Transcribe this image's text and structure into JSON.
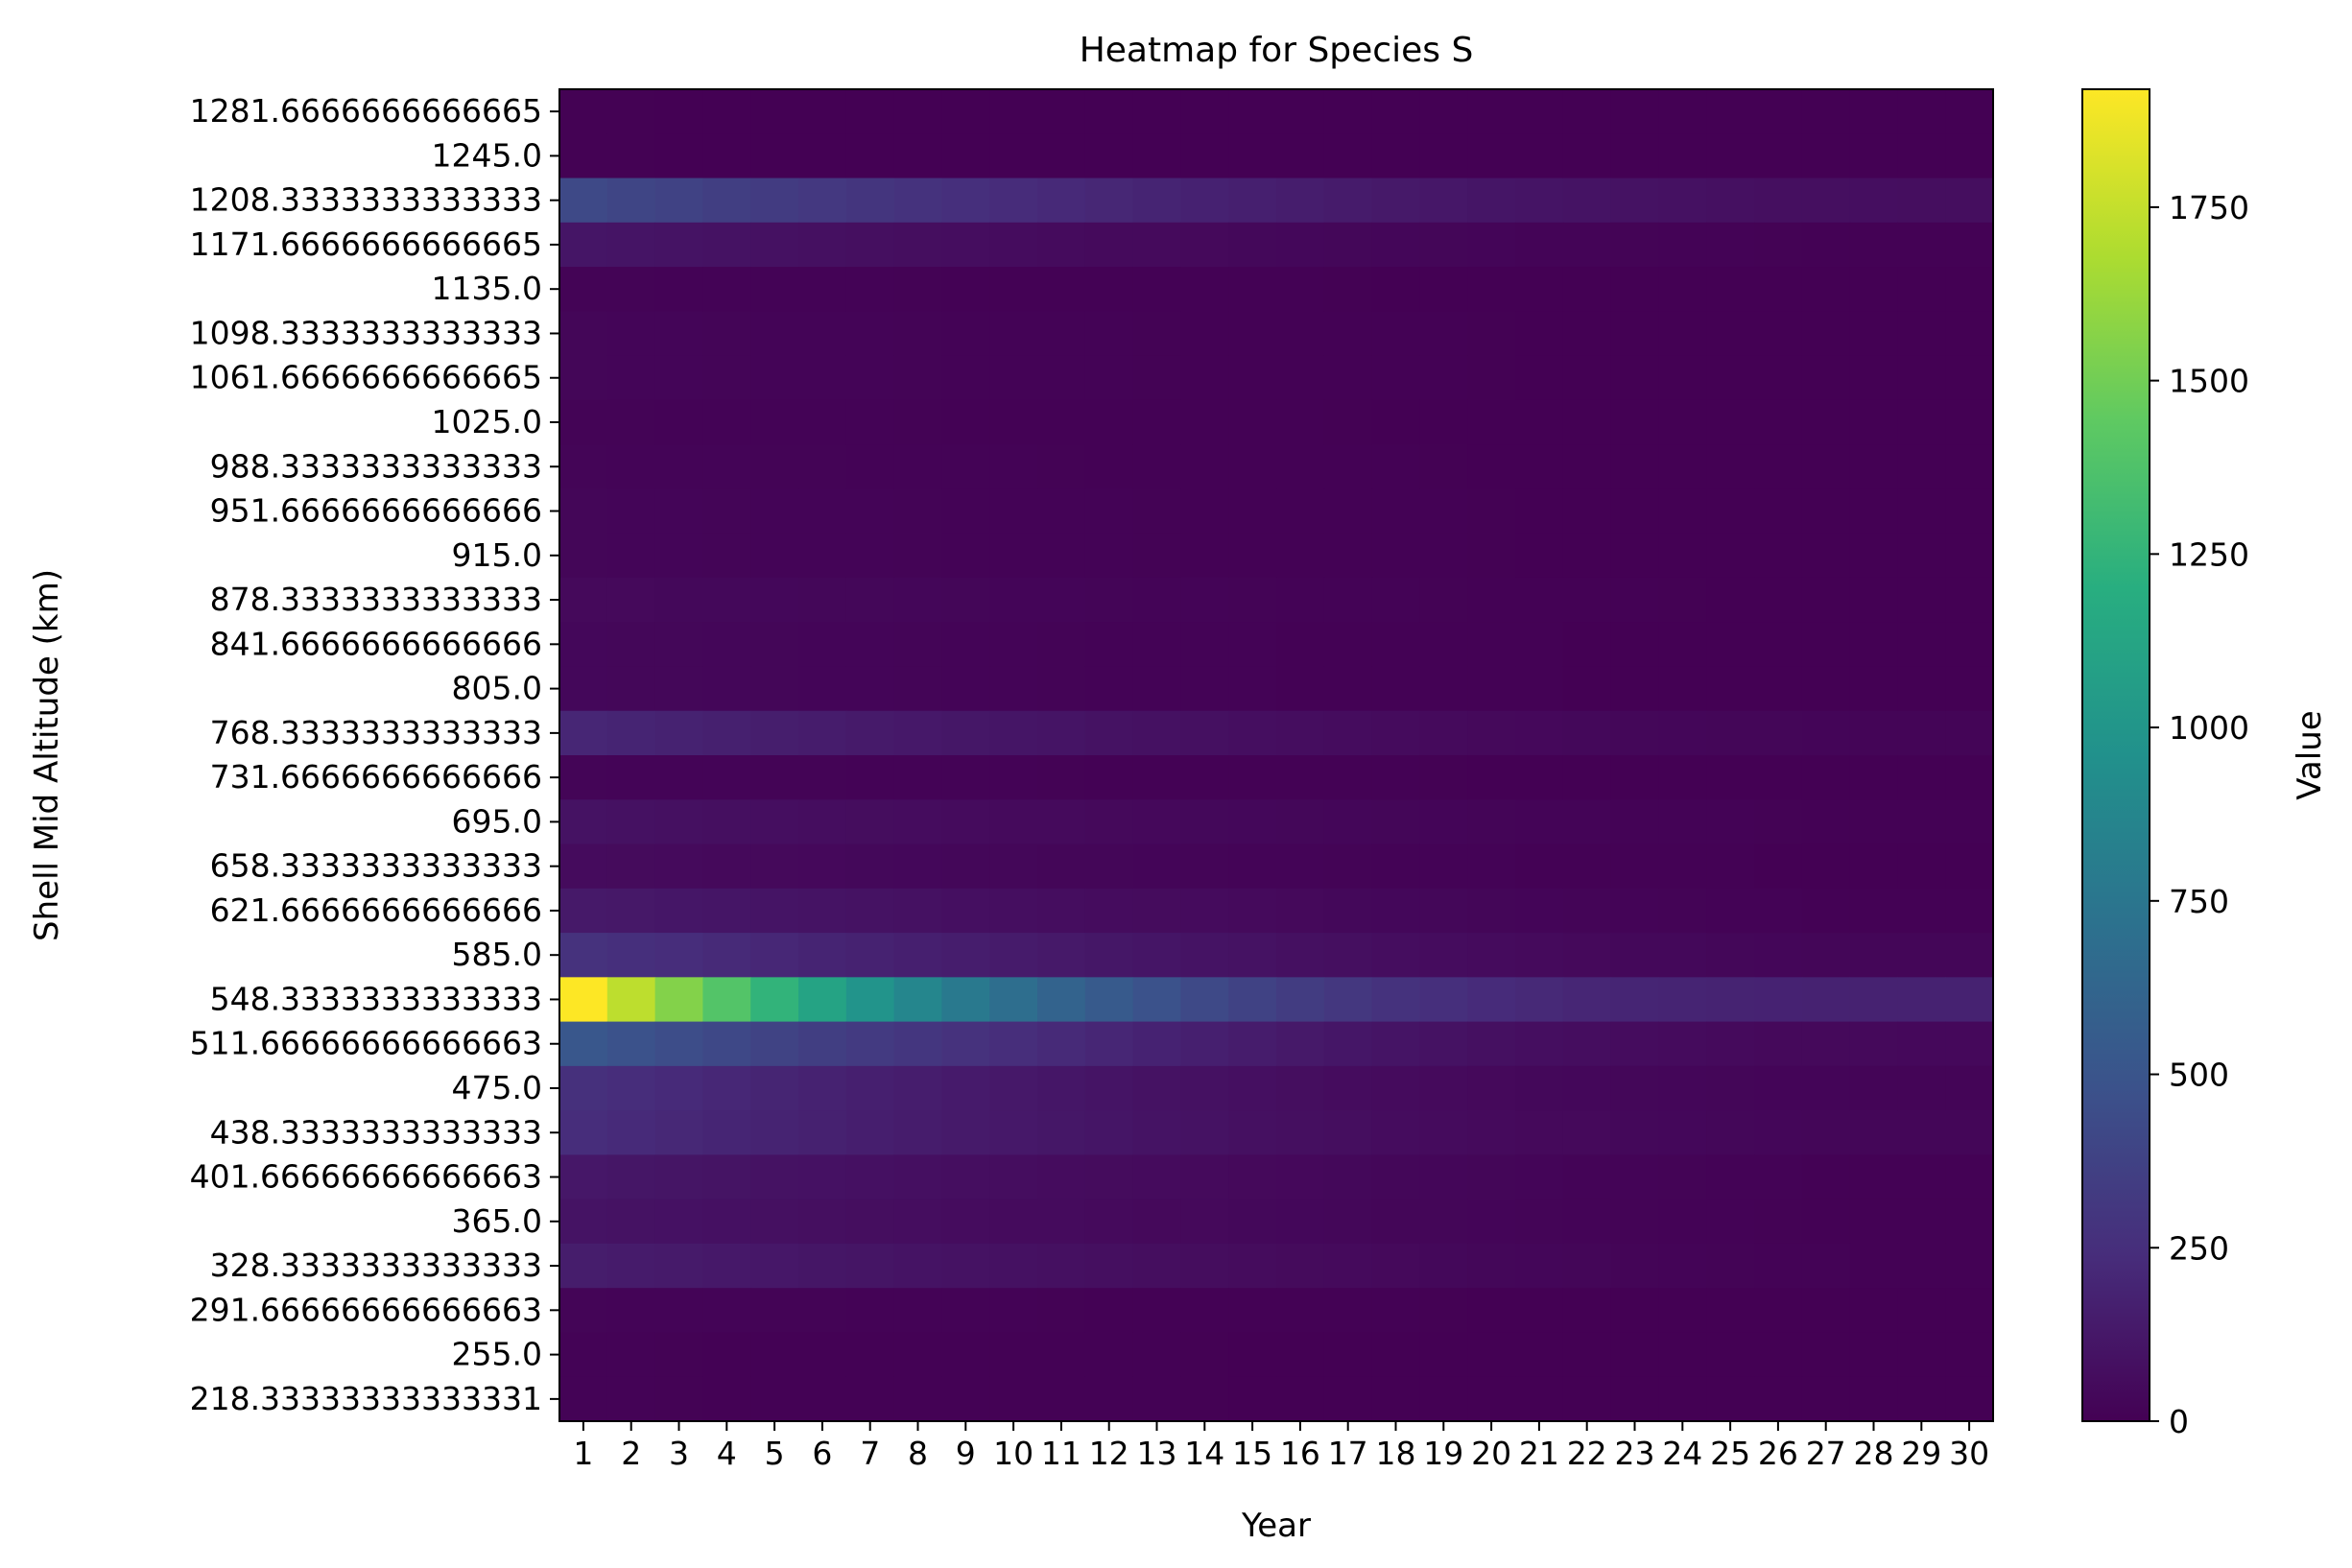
{
  "chart_data": {
    "type": "heatmap",
    "title": "Heatmap for Species S",
    "xlabel": "Year",
    "ylabel": "Shell Mid Altitude (km)",
    "colorbar_label": "Value",
    "colormap": "viridis",
    "vmin": 0,
    "vmax": 1920,
    "colorbar_ticks": [
      "0",
      "250",
      "500",
      "750",
      "1000",
      "1250",
      "1500",
      "1750"
    ],
    "x": [
      "1",
      "2",
      "3",
      "4",
      "5",
      "6",
      "7",
      "8",
      "9",
      "10",
      "11",
      "12",
      "13",
      "14",
      "15",
      "16",
      "17",
      "18",
      "19",
      "20",
      "21",
      "22",
      "23",
      "24",
      "25",
      "26",
      "27",
      "28",
      "29",
      "30"
    ],
    "y": [
      "1281.6666666666665",
      "1245.0",
      "1208.3333333333333",
      "1171.6666666666665",
      "1135.0",
      "1098.3333333333333",
      "1061.6666666666665",
      "1025.0",
      "988.3333333333333",
      "951.6666666666666",
      "915.0",
      "878.3333333333333",
      "841.6666666666666",
      "805.0",
      "768.3333333333333",
      "731.6666666666666",
      "695.0",
      "658.3333333333333",
      "621.6666666666666",
      "585.0",
      "548.3333333333333",
      "511.66666666666663",
      "475.0",
      "438.3333333333333",
      "401.66666666666663",
      "365.0",
      "328.3333333333333",
      "291.66666666666663",
      "255.0",
      "218.33333333333331"
    ],
    "rows": [
      {
        "start": 3,
        "end": 0,
        "decay": 1.0
      },
      {
        "start": 3,
        "end": 0,
        "decay": 1.0
      },
      {
        "start": 420,
        "end": 70,
        "decay": 1.0
      },
      {
        "start": 110,
        "end": 5,
        "decay": 1.2
      },
      {
        "start": 15,
        "end": 0,
        "decay": 1.0
      },
      {
        "start": 25,
        "end": 0,
        "decay": 1.0
      },
      {
        "start": 25,
        "end": 0,
        "decay": 1.0
      },
      {
        "start": 15,
        "end": 0,
        "decay": 1.0
      },
      {
        "start": 20,
        "end": 0,
        "decay": 1.0
      },
      {
        "start": 25,
        "end": 0,
        "decay": 1.0
      },
      {
        "start": 25,
        "end": 0,
        "decay": 1.0
      },
      {
        "start": 45,
        "end": 0,
        "decay": 1.2
      },
      {
        "start": 35,
        "end": 0,
        "decay": 1.0
      },
      {
        "start": 35,
        "end": 0,
        "decay": 1.0
      },
      {
        "start": 200,
        "end": 20,
        "decay": 1.1
      },
      {
        "start": 20,
        "end": 0,
        "decay": 1.0
      },
      {
        "start": 90,
        "end": 5,
        "decay": 1.3
      },
      {
        "start": 55,
        "end": 0,
        "decay": 1.3
      },
      {
        "start": 130,
        "end": 5,
        "decay": 1.3
      },
      {
        "start": 270,
        "end": 25,
        "decay": 1.0
      },
      {
        "start": 1920,
        "end": 180,
        "decay": 0.55
      },
      {
        "start": 520,
        "end": 40,
        "decay": 0.85
      },
      {
        "start": 260,
        "end": 20,
        "decay": 0.9
      },
      {
        "start": 240,
        "end": 25,
        "decay": 1.0
      },
      {
        "start": 120,
        "end": 5,
        "decay": 1.3
      },
      {
        "start": 100,
        "end": 5,
        "decay": 1.3
      },
      {
        "start": 150,
        "end": 5,
        "decay": 1.4
      },
      {
        "start": 20,
        "end": 0,
        "decay": 1.0
      },
      {
        "start": 10,
        "end": 0,
        "decay": 1.0
      },
      {
        "start": 10,
        "end": 0,
        "decay": 1.0
      }
    ]
  }
}
